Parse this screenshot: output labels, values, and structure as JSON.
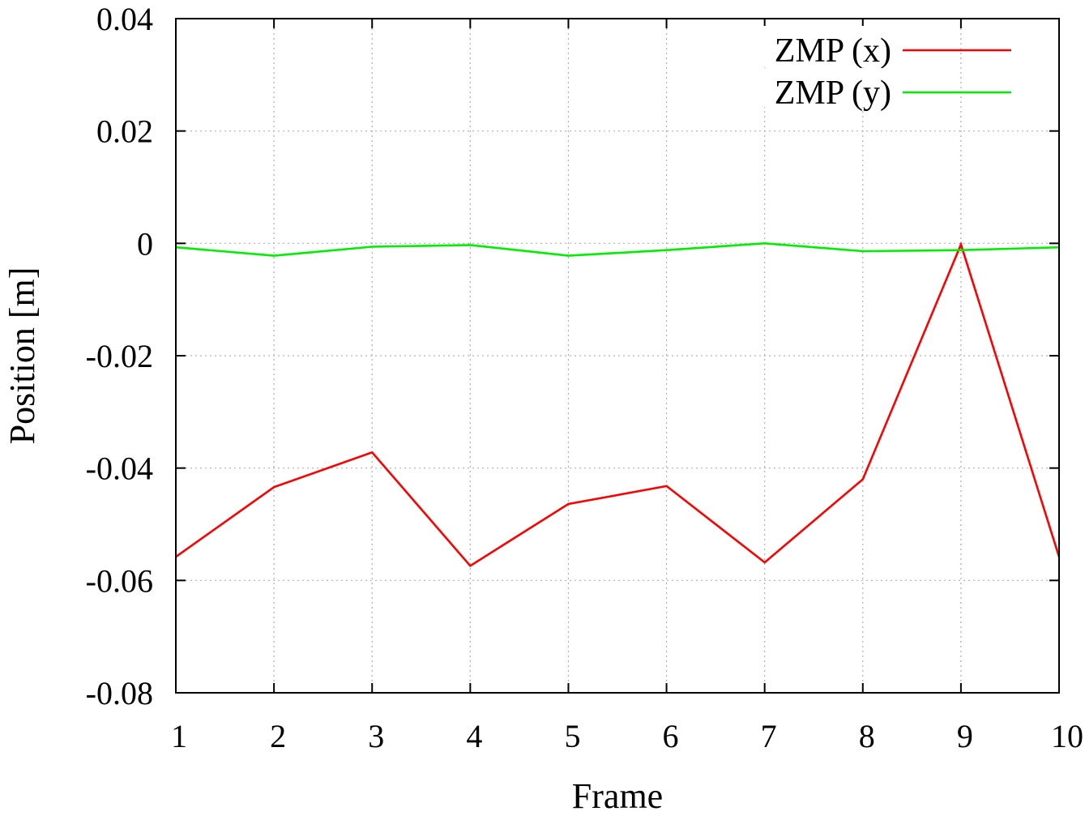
{
  "chart_data": {
    "type": "line",
    "title": "",
    "xlabel": "Frame",
    "ylabel": "Position [m]",
    "x": [
      1,
      2,
      3,
      4,
      5,
      6,
      7,
      8,
      9,
      10
    ],
    "xlim": [
      1,
      10
    ],
    "ylim": [
      -0.08,
      0.04
    ],
    "xticks": [
      1,
      2,
      3,
      4,
      5,
      6,
      7,
      8,
      9,
      10
    ],
    "xtick_labels": [
      "1",
      "2",
      "3",
      "4",
      "5",
      "6",
      "7",
      "8",
      "9",
      "10"
    ],
    "yticks": [
      -0.08,
      -0.06,
      -0.04,
      -0.02,
      0,
      0.02,
      0.04
    ],
    "ytick_labels": [
      "-0.08",
      "-0.06",
      "-0.04",
      "-0.02",
      "0",
      "0.02",
      "0.04"
    ],
    "grid": true,
    "legend_position": "top-right",
    "series": [
      {
        "name": "ZMP (x)",
        "color": "#ff0000",
        "values": [
          -0.0558,
          -0.0434,
          -0.0372,
          -0.0574,
          -0.0464,
          -0.0432,
          -0.0568,
          -0.042,
          -0.0002,
          -0.0558
        ]
      },
      {
        "name": "ZMP (y)",
        "color": "#00ee00",
        "values": [
          -0.0007,
          -0.0022,
          -0.0006,
          -0.0003,
          -0.0022,
          -0.0012,
          0.0,
          -0.0014,
          -0.0012,
          -0.0007
        ]
      }
    ]
  }
}
